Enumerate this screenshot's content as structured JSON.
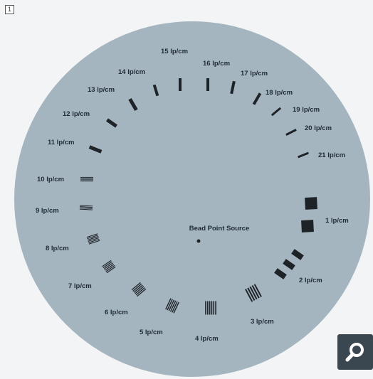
{
  "figure": {
    "number": "1"
  },
  "colors": {
    "phantom_disc": "#a5b5c0",
    "bars": "#1e2328",
    "labels": "#1f2a33",
    "zoom_button": "#3a4650"
  },
  "center_label": "Bead Point Source",
  "patterns": [
    {
      "label": "1 lp/cm",
      "lp_per_cm": 1
    },
    {
      "label": "2 lp/cm",
      "lp_per_cm": 2
    },
    {
      "label": "3 lp/cm",
      "lp_per_cm": 3
    },
    {
      "label": "4 lp/cm",
      "lp_per_cm": 4
    },
    {
      "label": "5 lp/cm",
      "lp_per_cm": 5
    },
    {
      "label": "6 lp/cm",
      "lp_per_cm": 6
    },
    {
      "label": "7 lp/cm",
      "lp_per_cm": 7
    },
    {
      "label": "8 lp/cm",
      "lp_per_cm": 8
    },
    {
      "label": "9 lp/cm",
      "lp_per_cm": 9
    },
    {
      "label": "10 lp/cm",
      "lp_per_cm": 10
    },
    {
      "label": "11 lp/cm",
      "lp_per_cm": 11
    },
    {
      "label": "12 lp/cm",
      "lp_per_cm": 12
    },
    {
      "label": "13 lp/cm",
      "lp_per_cm": 13
    },
    {
      "label": "14 lp/cm",
      "lp_per_cm": 14
    },
    {
      "label": "15 lp/cm",
      "lp_per_cm": 15
    },
    {
      "label": "16 lp/cm",
      "lp_per_cm": 16
    },
    {
      "label": "17 lp/cm",
      "lp_per_cm": 17
    },
    {
      "label": "18 lp/cm",
      "lp_per_cm": 18
    },
    {
      "label": "19 lp/cm",
      "lp_per_cm": 19
    },
    {
      "label": "20 lp/cm",
      "lp_per_cm": 20
    },
    {
      "label": "21 lp/cm",
      "lp_per_cm": 21
    }
  ],
  "icons": {
    "zoom": "magnifier-icon"
  }
}
